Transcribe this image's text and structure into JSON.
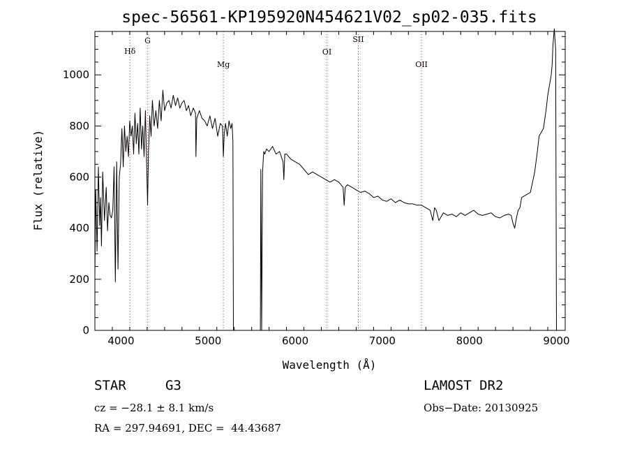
{
  "chart_data": {
    "type": "line",
    "title": "spec-56561-KP195920N454621V02_sp02-035.fits",
    "xlabel": "Wavelength (Å)",
    "ylabel": "Flux (relative)",
    "xlim": [
      3700,
      9100
    ],
    "ylim": [
      0,
      1170
    ],
    "xticks": [
      4000,
      5000,
      6000,
      7000,
      8000,
      9000
    ],
    "yticks": [
      0,
      200,
      400,
      600,
      800,
      1000
    ],
    "grid": false,
    "spectral_lines": [
      {
        "name": "Hδ",
        "x": 4102
      },
      {
        "name": "G",
        "x": 4305
      },
      {
        "name": "Mg",
        "x": 5175
      },
      {
        "name": "OI",
        "x": 6364
      },
      {
        "name": "SII",
        "x": 6724
      },
      {
        "name": "OII",
        "x": 7450
      }
    ],
    "series": [
      {
        "x": [
          3700,
          3710,
          3725,
          3740,
          3755,
          3765,
          3775,
          3790,
          3810,
          3830,
          3845,
          3860,
          3875,
          3890,
          3905,
          3920,
          3935,
          3950,
          3965,
          3980,
          3995,
          4010,
          4025,
          4040,
          4055,
          4070,
          4085,
          4100,
          4115,
          4130,
          4145,
          4160,
          4175,
          4190,
          4205,
          4220,
          4235,
          4250,
          4265,
          4280,
          4295,
          4305,
          4315,
          4330,
          4345,
          4360,
          4380,
          4400,
          4420,
          4440,
          4460,
          4480,
          4500,
          4525,
          4550,
          4575,
          4600,
          4625,
          4650,
          4675,
          4700,
          4725,
          4750,
          4775,
          4800,
          4830,
          4855,
          4860,
          4870,
          4900,
          4930,
          4960,
          4990,
          5020,
          5050,
          5080,
          5110,
          5140,
          5165,
          5175,
          5185,
          5200,
          5220,
          5240,
          5260,
          5275,
          5285,
          5290,
          5300,
          5320,
          5400,
          5500,
          5600,
          5605,
          5615,
          5625,
          5635,
          5640,
          5650,
          5670,
          5700,
          5740,
          5780,
          5820,
          5860,
          5870,
          5880,
          5900,
          5950,
          6000,
          6050,
          6100,
          6150,
          6200,
          6250,
          6300,
          6350,
          6400,
          6450,
          6500,
          6550,
          6562,
          6575,
          6600,
          6650,
          6700,
          6750,
          6800,
          6850,
          6900,
          6950,
          7000,
          7050,
          7100,
          7150,
          7200,
          7250,
          7300,
          7350,
          7400,
          7450,
          7500,
          7550,
          7580,
          7600,
          7620,
          7650,
          7700,
          7750,
          7800,
          7850,
          7900,
          7950,
          8000,
          8050,
          8100,
          8150,
          8200,
          8250,
          8300,
          8350,
          8400,
          8450,
          8480,
          8500,
          8520,
          8540,
          8560,
          8580,
          8600,
          8650,
          8700,
          8750,
          8780,
          8800,
          8850,
          8880,
          8900,
          8920,
          8940,
          8950,
          8960,
          8975,
          8990,
          9000
        ],
        "y": [
          220,
          550,
          310,
          640,
          410,
          520,
          330,
          620,
          430,
          560,
          390,
          500,
          450,
          440,
          470,
          640,
          190,
          660,
          240,
          600,
          650,
          790,
          640,
          800,
          700,
          760,
          680,
          820,
          760,
          800,
          690,
          850,
          730,
          810,
          690,
          870,
          710,
          800,
          680,
          860,
          640,
          490,
          700,
          840,
          760,
          900,
          800,
          860,
          790,
          900,
          820,
          940,
          860,
          890,
          900,
          870,
          920,
          880,
          910,
          870,
          890,
          900,
          860,
          880,
          840,
          870,
          850,
          680,
          830,
          860,
          830,
          820,
          800,
          840,
          790,
          830,
          760,
          810,
          800,
          680,
          770,
          810,
          760,
          820,
          790,
          810,
          740,
          0,
          0,
          0,
          0,
          0,
          0,
          630,
          0,
          620,
          680,
          700,
          690,
          710,
          700,
          720,
          690,
          700,
          660,
          590,
          690,
          690,
          670,
          660,
          650,
          630,
          610,
          620,
          610,
          600,
          590,
          580,
          590,
          580,
          560,
          490,
          560,
          570,
          560,
          550,
          540,
          545,
          535,
          520,
          525,
          510,
          505,
          515,
          500,
          510,
          500,
          495,
          495,
          490,
          490,
          480,
          470,
          430,
          480,
          470,
          430,
          460,
          450,
          455,
          445,
          460,
          450,
          460,
          470,
          455,
          450,
          455,
          460,
          445,
          440,
          450,
          455,
          450,
          420,
          400,
          440,
          470,
          480,
          520,
          530,
          540,
          620,
          700,
          760,
          790,
          860,
          920,
          960,
          1000,
          1040,
          1120,
          1180,
          1100,
          0
        ]
      }
    ]
  },
  "info": {
    "object_class": "STAR",
    "subclass": "G3",
    "survey": "LAMOST DR2",
    "cz": "cz = −28.1 ± 8.1 km/s",
    "obs_date": "Obs−Date: 20130925",
    "coords": "RA = 297.94691, DEC =  44.43687"
  }
}
